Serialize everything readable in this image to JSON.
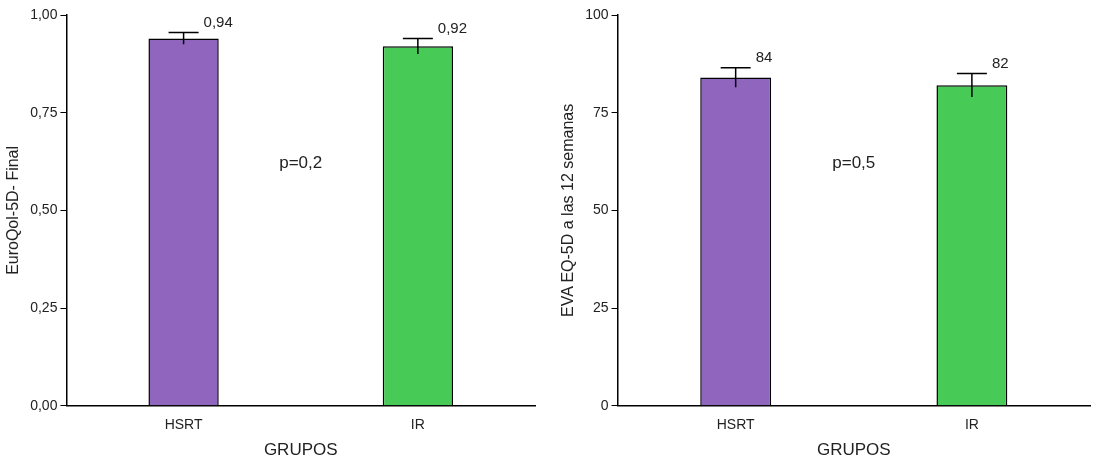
{
  "chart_data": [
    {
      "type": "bar",
      "ylabel": "EuroQol-5D- Final",
      "xlabel": "GRUPOS",
      "categories": [
        "HSRT",
        "IR"
      ],
      "values": [
        0.94,
        0.92
      ],
      "colors": [
        "#9065bd",
        "#47cb56"
      ],
      "errors": [
        0.015,
        0.02
      ],
      "value_labels": [
        "0,94",
        "0,92"
      ],
      "ylim": [
        0,
        1
      ],
      "yticks": [
        {
          "value": 0,
          "label": "0,00"
        },
        {
          "value": 0.25,
          "label": "0,25"
        },
        {
          "value": 0.5,
          "label": "0,50"
        },
        {
          "value": 0.75,
          "label": "0,75"
        },
        {
          "value": 1,
          "label": "1,00"
        }
      ],
      "grid": false,
      "legend": false,
      "annotations": [
        "p=0,2"
      ]
    },
    {
      "type": "bar",
      "ylabel": "EVA EQ-5D a las 12 semanas",
      "xlabel": "GRUPOS",
      "categories": [
        "HSRT",
        "IR"
      ],
      "values": [
        84,
        82
      ],
      "colors": [
        "#9065bd",
        "#47cb56"
      ],
      "errors": [
        2.5,
        3
      ],
      "value_labels": [
        "84",
        "82"
      ],
      "ylim": [
        0,
        100
      ],
      "yticks": [
        0,
        25,
        50,
        75,
        100
      ],
      "grid": false,
      "legend": false,
      "annotations": [
        "p=0,5"
      ]
    }
  ]
}
